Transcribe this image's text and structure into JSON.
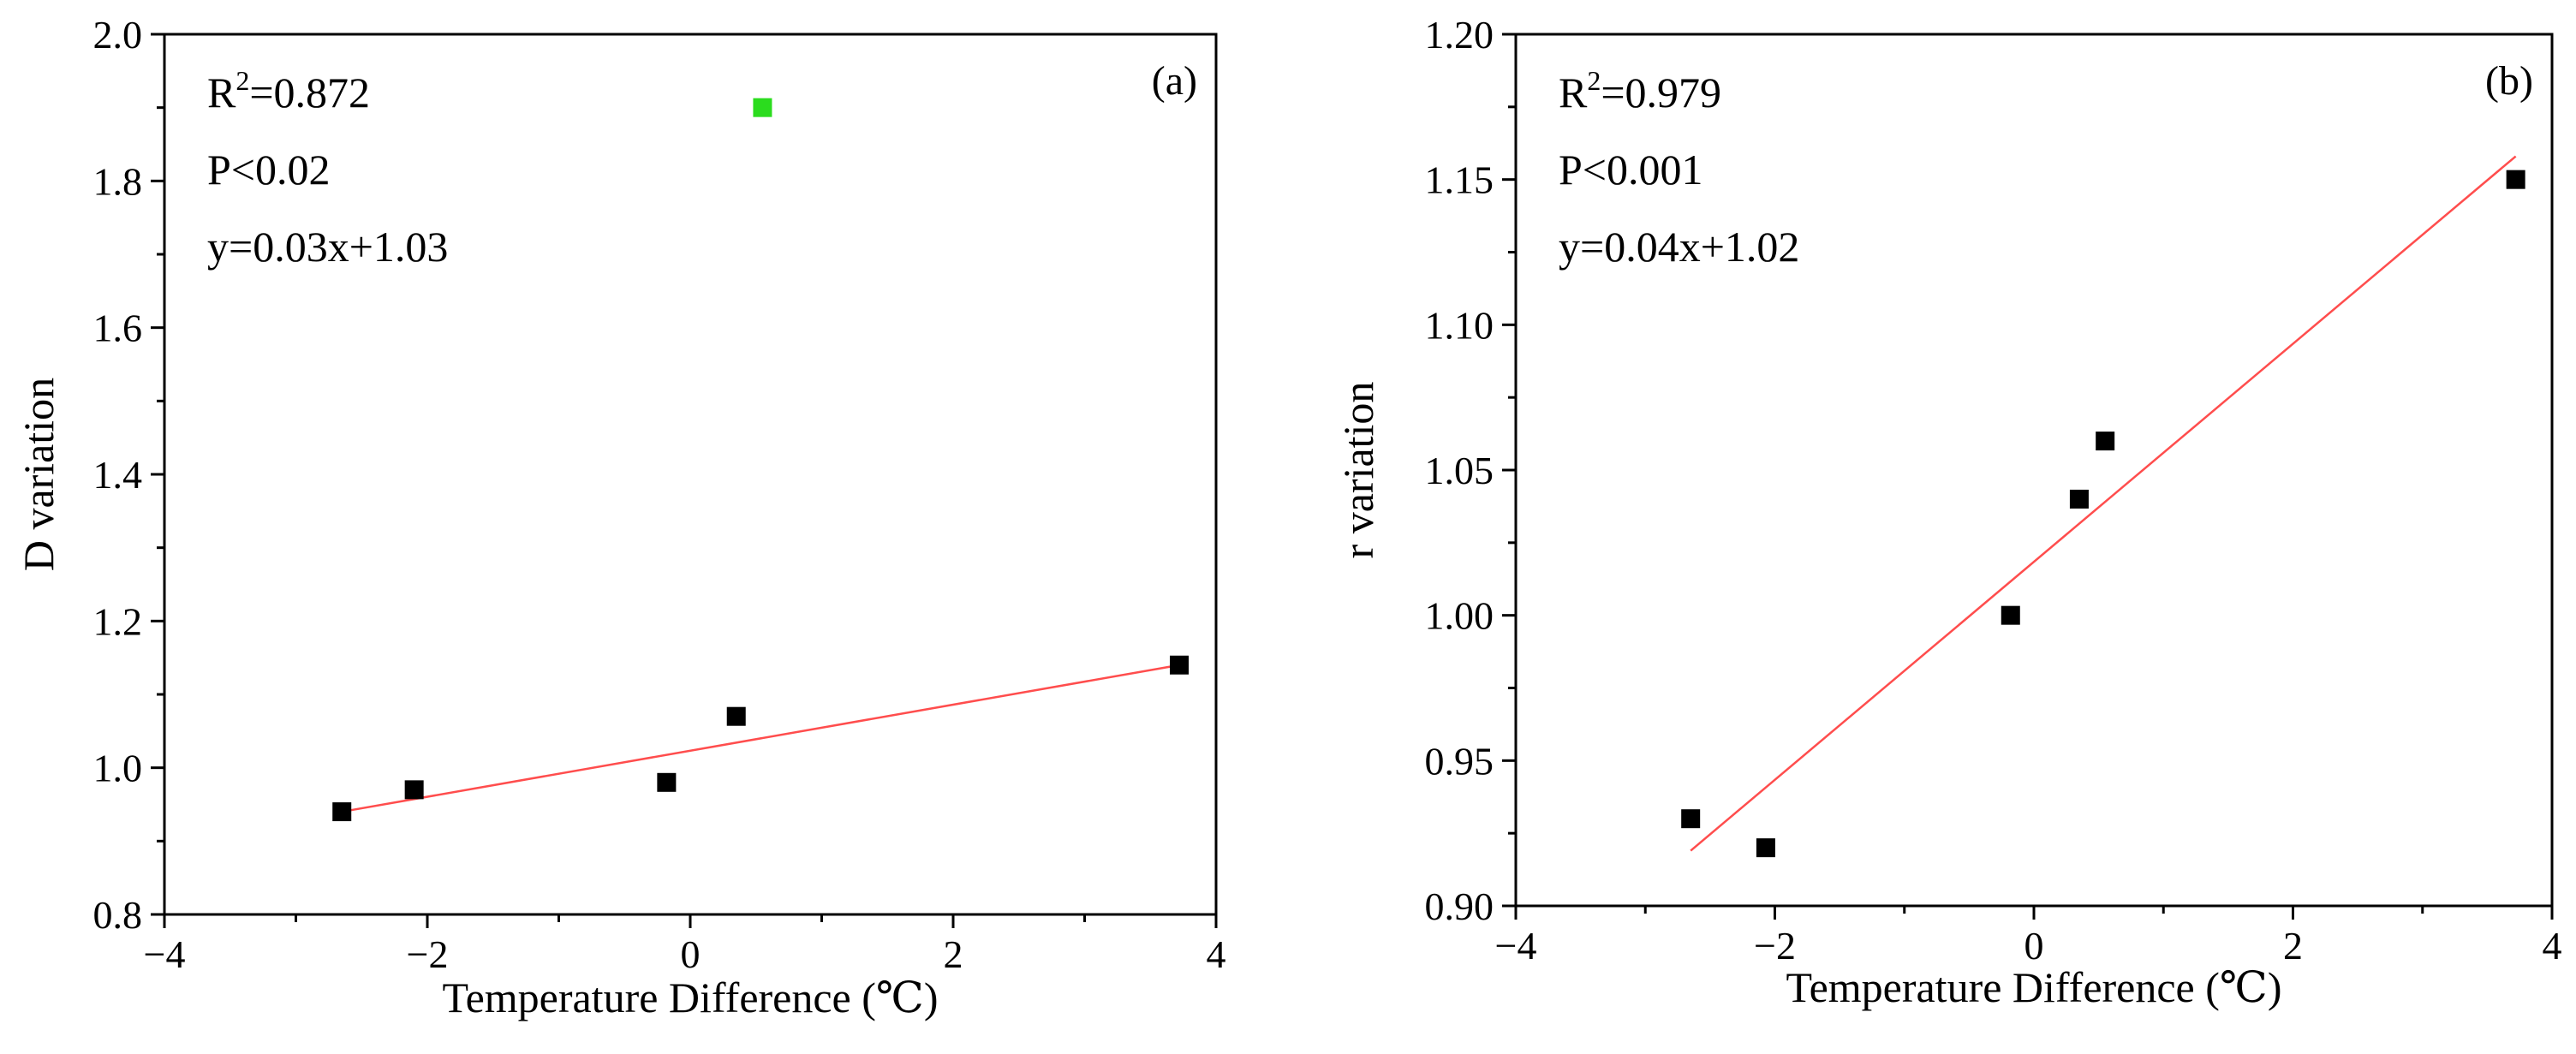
{
  "chart_data": [
    {
      "panel_label": "(a)",
      "type": "scatter",
      "xlabel": "Temperature Difference (℃)",
      "ylabel": "D variation",
      "xlim": [
        -4,
        4
      ],
      "ylim": [
        0.8,
        2.0
      ],
      "xticks": [
        -4,
        -2,
        0,
        2,
        4
      ],
      "xtick_labels": [
        "−4",
        "−2",
        "0",
        "2",
        "4"
      ],
      "yticks": [
        0.8,
        1.0,
        1.2,
        1.4,
        1.6,
        1.8,
        2.0
      ],
      "ytick_labels": [
        "0.8",
        "1.0",
        "1.2",
        "1.4",
        "1.6",
        "1.8",
        "2.0"
      ],
      "annotations": {
        "r2_prefix": "R",
        "r2_sup": "2",
        "r2_value": "=0.872",
        "p": "P<0.02",
        "eq": "y=0.03x+1.03"
      },
      "points": [
        {
          "x": -2.65,
          "y": 0.94
        },
        {
          "x": -2.1,
          "y": 0.97
        },
        {
          "x": -0.18,
          "y": 0.98
        },
        {
          "x": 0.35,
          "y": 1.07
        },
        {
          "x": 3.72,
          "y": 1.14
        }
      ],
      "legend_marker": {
        "x": 0.55,
        "y": 1.9,
        "color": "#2bdc1e"
      },
      "fit_line": {
        "x1": -2.65,
        "y1": 0.94,
        "x2": 3.72,
        "y2": 1.14,
        "color": "#ff4d4d"
      },
      "marker_color": "#000000",
      "grid": false
    },
    {
      "panel_label": "(b)",
      "type": "scatter",
      "xlabel": "Temperature Difference (℃)",
      "ylabel": "r variation",
      "xlim": [
        -4,
        4
      ],
      "ylim": [
        0.9,
        1.2
      ],
      "xticks": [
        -4,
        -2,
        0,
        2,
        4
      ],
      "xtick_labels": [
        "−4",
        "−2",
        "0",
        "2",
        "4"
      ],
      "yticks": [
        0.9,
        0.95,
        1.0,
        1.05,
        1.1,
        1.15,
        1.2
      ],
      "ytick_labels": [
        "0.90",
        "0.95",
        "1.00",
        "1.05",
        "1.10",
        "1.15",
        "1.20"
      ],
      "annotations": {
        "r2_prefix": "R",
        "r2_sup": "2",
        "r2_value": "=0.979",
        "p": "P<0.001",
        "eq": "y=0.04x+1.02"
      },
      "points": [
        {
          "x": -2.65,
          "y": 0.93
        },
        {
          "x": -2.07,
          "y": 0.92
        },
        {
          "x": -0.18,
          "y": 1.0
        },
        {
          "x": 0.35,
          "y": 1.04
        },
        {
          "x": 0.55,
          "y": 1.06
        },
        {
          "x": 3.72,
          "y": 1.15
        }
      ],
      "fit_line": {
        "x1": -2.65,
        "y1": 0.919,
        "x2": 3.72,
        "y2": 1.158,
        "color": "#ff4d4d"
      },
      "marker_color": "#000000",
      "grid": false
    }
  ]
}
